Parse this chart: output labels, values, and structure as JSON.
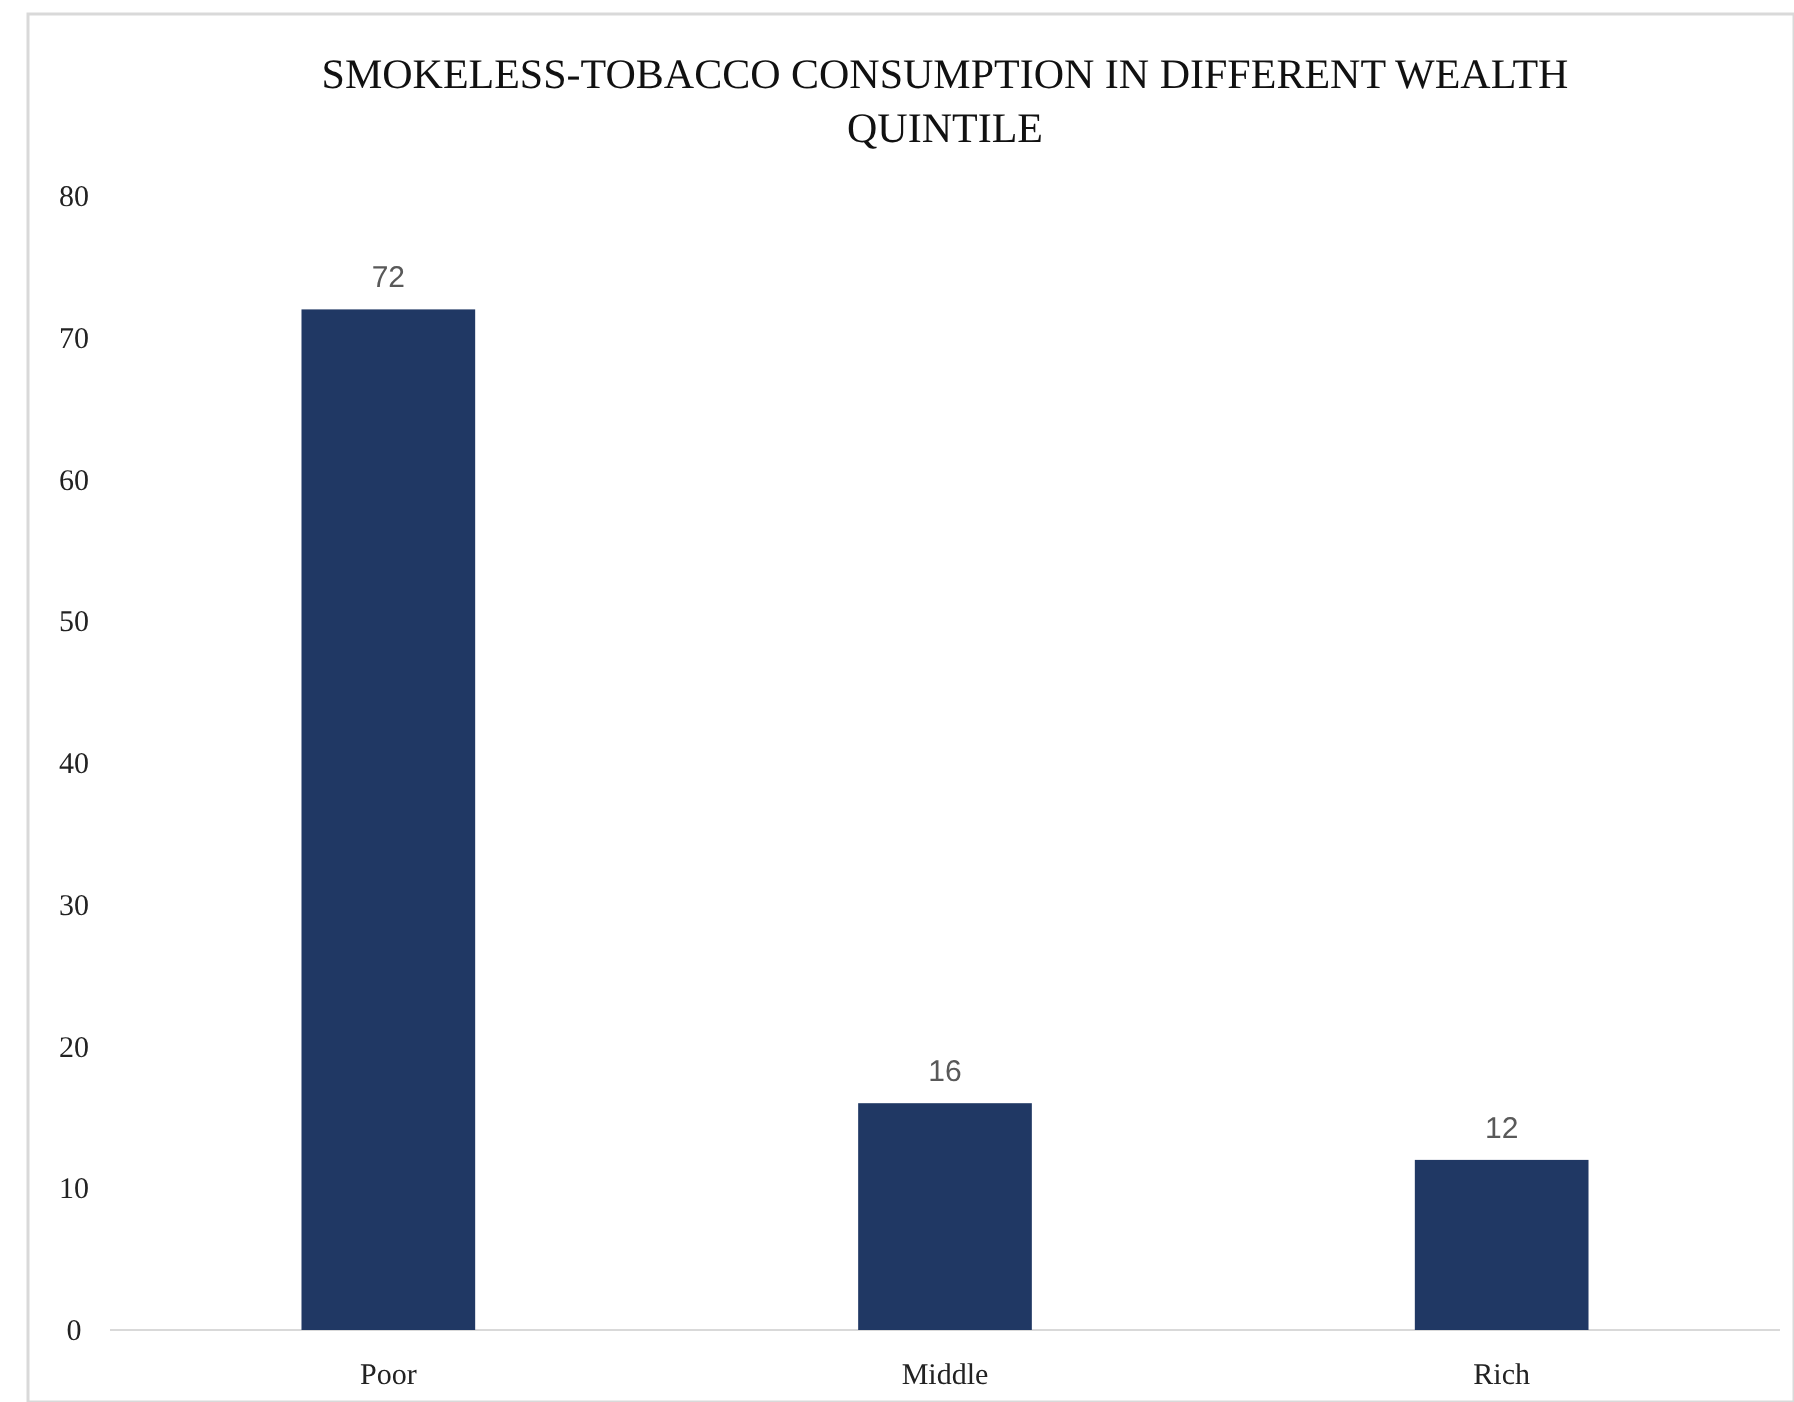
{
  "chart_data": {
    "type": "bar",
    "title": "SMOKELESS-TOBACCO CONSUMPTION IN DIFFERENT WEALTH QUINTILE",
    "categories": [
      "Poor",
      "Middle",
      "Rich"
    ],
    "values": [
      72,
      16,
      12
    ],
    "color": "#203864",
    "ylim": [
      0,
      80
    ],
    "yticks": [
      0,
      10,
      20,
      30,
      40,
      50,
      60,
      70,
      80
    ],
    "data_labels": true,
    "grid": false
  }
}
